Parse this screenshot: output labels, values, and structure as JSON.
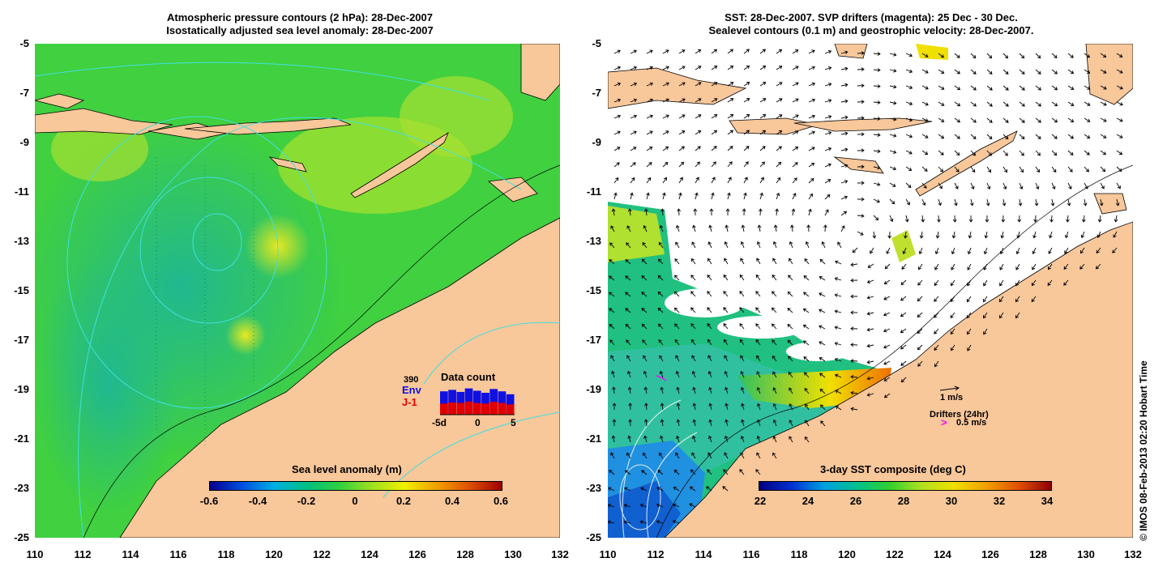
{
  "left_panel": {
    "title_line1": "Atmospheric pressure contours (2 hPa): 28-Dec-2007",
    "title_line2": "Isostatically adjusted sea level anomaly: 28-Dec-2007",
    "colorbar_title": "Sea level anomaly (m)",
    "colorbar_ticks": [
      "-0.6",
      "-0.4",
      "-0.2",
      "0",
      "0.2",
      "0.4",
      "0.6"
    ],
    "data_count": {
      "title": "Data count",
      "value": "390",
      "env_label": "Env",
      "j1_label": "J-1",
      "axis_ticks": [
        "-5d",
        "0",
        "5"
      ],
      "env_values": [
        0.8,
        0.85,
        0.78,
        0.9,
        0.82,
        0.75,
        0.88,
        0.8,
        0.7
      ],
      "j1_values": [
        0.38,
        0.42,
        0.4,
        0.45,
        0.4,
        0.38,
        0.44,
        0.4,
        0.35
      ]
    }
  },
  "right_panel": {
    "title_line1": "SST: 28-Dec-2007. SVP drifters (magenta): 25 Dec - 30 Dec.",
    "title_line2": "Sealevel contours (0.1 m) and geostrophic velocity: 28-Dec-2007.",
    "colorbar_title": "3-day SST composite (deg C)",
    "colorbar_ticks": [
      "22",
      "24",
      "26",
      "28",
      "30",
      "32",
      "34"
    ],
    "scale_velocity": "1 m/s",
    "drifters_label": "Drifters (24hr)",
    "drifter_scale": "0.5 m/s"
  },
  "axes": {
    "lat_ticks": [
      "-5",
      "-7",
      "-9",
      "-11",
      "-13",
      "-15",
      "-17",
      "-19",
      "-21",
      "-23",
      "-25"
    ],
    "lon_ticks": [
      "110",
      "112",
      "114",
      "116",
      "118",
      "120",
      "122",
      "124",
      "126",
      "128",
      "130",
      "132"
    ]
  },
  "credit": "© IMOS 08-Feb-2013 02:20 Hobart Time",
  "colors": {
    "land": "#F8C79A",
    "contour": "#40E0E0",
    "drifter": "#FF00FF",
    "sla_gradient": [
      "#00008B",
      "#0050E0",
      "#00B0E0",
      "#00C080",
      "#30D040",
      "#A0E020",
      "#F0F000",
      "#F0A000",
      "#E05000",
      "#A00000"
    ],
    "sst_gradient": [
      "#000080",
      "#0030D0",
      "#00A0E0",
      "#00C090",
      "#30D030",
      "#B0E020",
      "#F0E000",
      "#F0A000",
      "#E05000",
      "#900000"
    ]
  }
}
